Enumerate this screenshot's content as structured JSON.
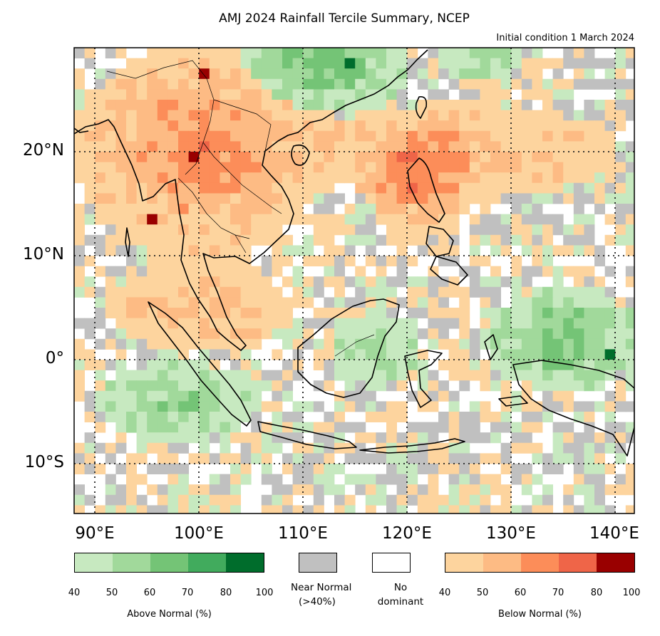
{
  "title": "AMJ 2024 Rainfall Tercile Summary, NCEP",
  "subtitle": "Initial condition 1 March 2024",
  "lat_labels": [
    "20°N",
    "10°N",
    "0°",
    "10°S"
  ],
  "lon_labels": [
    "90°E",
    "100°E",
    "110°E",
    "120°E",
    "130°E",
    "140°E"
  ],
  "colors": {
    "above": [
      "#c7e9c0",
      "#a1d99b",
      "#74c476",
      "#41ab5d",
      "#006d2c"
    ],
    "near": "#c0c0c0",
    "none": "#ffffff",
    "below": [
      "#fdd49e",
      "#fdbb84",
      "#fc8d59",
      "#ef6548",
      "#990000"
    ]
  },
  "legend": {
    "above_title": "Above Normal (%)",
    "above_ticks": [
      "40",
      "50",
      "60",
      "70",
      "80",
      "100"
    ],
    "near_label_1": "Near Normal",
    "near_label_2": "(>40%)",
    "none_label_1": "No",
    "none_label_2": "dominant",
    "below_title": "Below Normal (%)",
    "below_ticks": [
      "40",
      "50",
      "60",
      "70",
      "80",
      "100"
    ]
  }
}
